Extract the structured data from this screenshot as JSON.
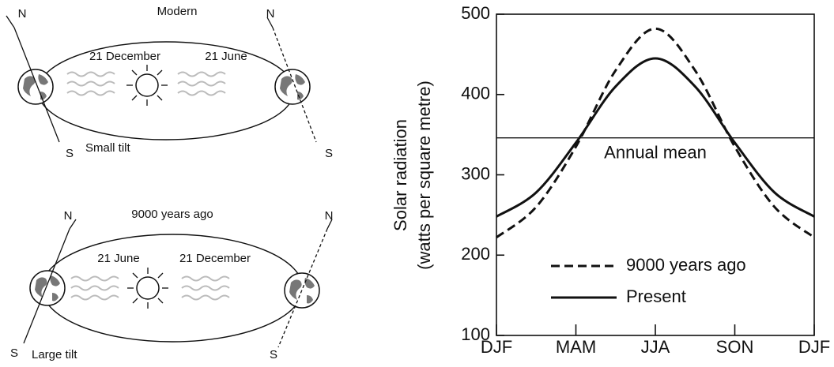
{
  "diagram": {
    "panels": [
      {
        "title": "Modern",
        "left_date": "21 December",
        "right_date": "21 June",
        "tilt_label": "Small tilt",
        "poles": [
          "N",
          "S",
          "N",
          "S"
        ]
      },
      {
        "title": "9000 years ago",
        "left_date": "21 June",
        "right_date": "21 December",
        "tilt_label": "Large tilt",
        "poles": [
          "N",
          "S",
          "N",
          "S"
        ]
      }
    ]
  },
  "chart_data": {
    "type": "line",
    "ylabel": [
      "Solar radiation",
      "(watts per square metre)"
    ],
    "x": [
      0,
      0.5,
      1,
      1.5,
      2,
      2.5,
      3,
      3.5,
      4
    ],
    "xlim": [
      0,
      4
    ],
    "xticks": [
      {
        "value": 0,
        "label": "DJF"
      },
      {
        "value": 1,
        "label": "MAM"
      },
      {
        "value": 2,
        "label": "JJA"
      },
      {
        "value": 3,
        "label": "SON"
      },
      {
        "value": 4,
        "label": "DJF"
      }
    ],
    "ylim": [
      100,
      500
    ],
    "yticks": [
      100,
      200,
      300,
      400,
      500
    ],
    "series": [
      {
        "name": "9000 years ago",
        "color": "#111111",
        "dash": true,
        "values": [
          222,
          260,
          335,
          430,
          482,
          430,
          335,
          260,
          222
        ]
      },
      {
        "name": "Present",
        "color": "#111111",
        "dash": false,
        "values": [
          248,
          278,
          340,
          410,
          445,
          410,
          340,
          278,
          248
        ]
      }
    ],
    "reference_line": {
      "label": "Annual mean",
      "value": 346
    },
    "legend": "lower center"
  }
}
